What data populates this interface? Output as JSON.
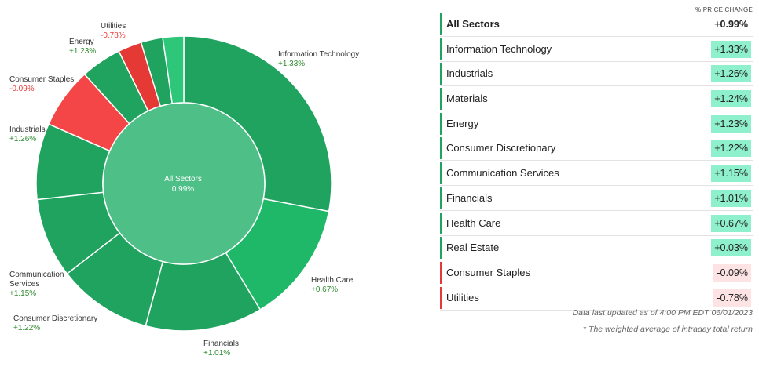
{
  "chart_data": {
    "type": "pie",
    "center": {
      "name": "All Sectors",
      "value": "0.99%"
    },
    "sectors": [
      {
        "name": "Information Technology",
        "change": "+1.33%",
        "weight": 28.2,
        "color": "#1fa35f"
      },
      {
        "name": "Health Care",
        "change": "+0.67%",
        "weight": 13.4,
        "color": "#1fb868"
      },
      {
        "name": "Financials",
        "change": "+1.01%",
        "weight": 12.9,
        "color": "#1fa35f"
      },
      {
        "name": "Consumer Discretionary",
        "change": "+1.22%",
        "weight": 10.4,
        "color": "#1fa35f"
      },
      {
        "name": "Communication Services",
        "change": "+1.15%",
        "weight": 8.8,
        "color": "#1fa35f"
      },
      {
        "name": "Industrials",
        "change": "+1.26%",
        "weight": 8.4,
        "color": "#1fa35f"
      },
      {
        "name": "Consumer Staples",
        "change": "-0.09%",
        "weight": 6.7,
        "color": "#f44646"
      },
      {
        "name": "Energy",
        "change": "+1.23%",
        "weight": 4.5,
        "color": "#1fa35f"
      },
      {
        "name": "Utilities",
        "change": "-0.78%",
        "weight": 2.6,
        "color": "#e53935"
      },
      {
        "name": "Real Estate",
        "change": "",
        "weight": 2.4,
        "color": "#1fa35f"
      },
      {
        "name": "Materials",
        "change": "",
        "weight": 2.3,
        "color": "#2ec77a"
      }
    ]
  },
  "table": {
    "header": "% PRICE CHANGE",
    "rows": [
      {
        "name": "All Sectors",
        "value": "+0.99%",
        "positive": true,
        "bold": true
      },
      {
        "name": "Information Technology",
        "value": "+1.33%",
        "positive": true
      },
      {
        "name": "Industrials",
        "value": "+1.26%",
        "positive": true
      },
      {
        "name": "Materials",
        "value": "+1.24%",
        "positive": true
      },
      {
        "name": "Energy",
        "value": "+1.23%",
        "positive": true
      },
      {
        "name": "Consumer Discretionary",
        "value": "+1.22%",
        "positive": true
      },
      {
        "name": "Communication Services",
        "value": "+1.15%",
        "positive": true
      },
      {
        "name": "Financials",
        "value": "+1.01%",
        "positive": true
      },
      {
        "name": "Health Care",
        "value": "+0.67%",
        "positive": true
      },
      {
        "name": "Real Estate",
        "value": "+0.03%",
        "positive": true
      },
      {
        "name": "Consumer Staples",
        "value": "-0.09%",
        "positive": false
      },
      {
        "name": "Utilities",
        "value": "-0.78%",
        "positive": false
      }
    ],
    "footnote1": "Data last updated as of 4:00 PM EDT 06/01/2023",
    "footnote2": "* The weighted average of intraday total return"
  },
  "colors": {
    "positive_bar": "#1fa35f",
    "negative_bar": "#e53935",
    "positive_badge": "#8ff0cd",
    "negative_badge": "#fde3e3",
    "inner_circle": "#4dbf87"
  }
}
